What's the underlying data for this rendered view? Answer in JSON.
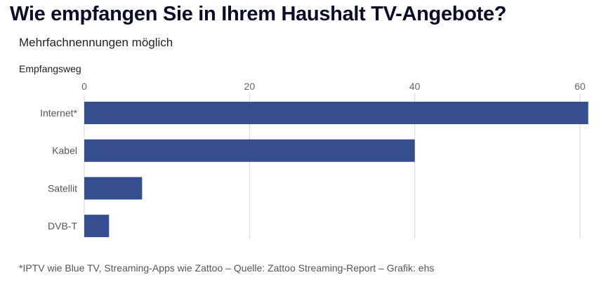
{
  "chart_data": {
    "type": "bar",
    "orientation": "horizontal",
    "title": "Wie empfangen Sie in Ihrem Haushalt TV-Angebote?",
    "subtitle": "Mehrfachnennungen möglich",
    "ylabel": "Empfangsweg",
    "xlabel": "",
    "categories": [
      "Internet*",
      "Kabel",
      "Satellit",
      "DVB-T"
    ],
    "values": [
      61,
      40,
      7,
      3
    ],
    "xlim": [
      0,
      61
    ],
    "xticks": [
      0,
      20,
      40,
      60
    ],
    "grid": true,
    "bar_color": "#344e8f",
    "footnote": "*IPTV wie Blue TV, Streaming-Apps wie Zattoo – Quelle: Zattoo Streaming-Report – Grafik: ehs"
  }
}
